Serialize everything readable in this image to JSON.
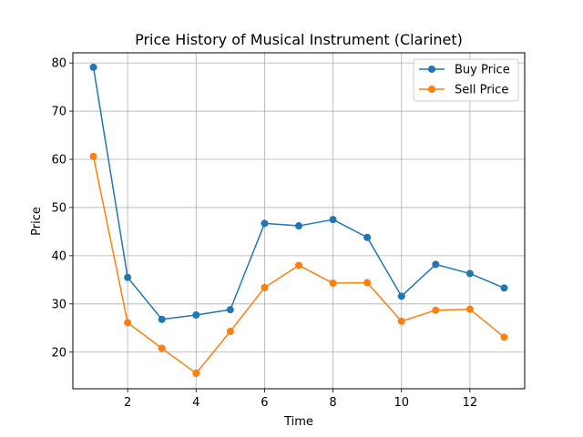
{
  "chart_data": {
    "type": "line",
    "title": "Price History of Musical Instrument (Clarinet)",
    "xlabel": "Time",
    "ylabel": "Price",
    "x": [
      1,
      2,
      3,
      4,
      5,
      6,
      7,
      8,
      9,
      10,
      11,
      12,
      13
    ],
    "xlim": [
      0.4,
      13.6
    ],
    "ylim": [
      12.4,
      82.1
    ],
    "xticks": [
      2,
      4,
      6,
      8,
      10,
      12
    ],
    "yticks": [
      20,
      30,
      40,
      50,
      60,
      70,
      80
    ],
    "grid": true,
    "legend_position": "top-right",
    "series": [
      {
        "name": "Buy Price",
        "color": "#1f77b4",
        "values": [
          79.1,
          35.5,
          26.8,
          27.7,
          28.8,
          46.7,
          46.2,
          47.5,
          43.8,
          31.6,
          38.2,
          36.3,
          33.3
        ]
      },
      {
        "name": "Sell Price",
        "color": "#ff7f0e",
        "values": [
          60.6,
          26.1,
          20.8,
          15.6,
          24.3,
          33.4,
          38.0,
          34.3,
          34.4,
          26.4,
          28.7,
          28.9,
          23.1
        ]
      }
    ]
  }
}
